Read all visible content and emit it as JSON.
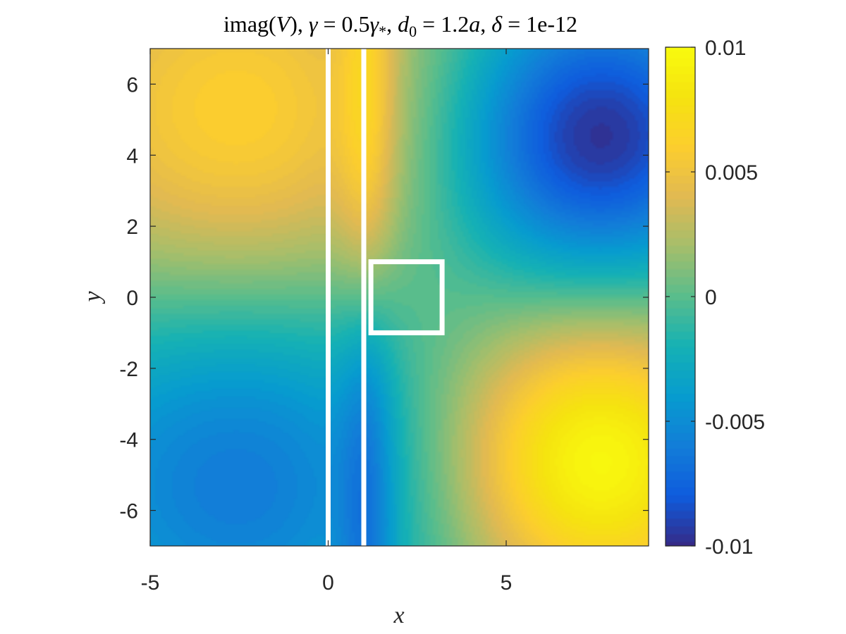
{
  "chart_data": {
    "type": "heatmap",
    "title": "imag(V), γ = 0.5γ*, d0 = 1.2a, δ = 1e-12",
    "title_parts": {
      "func": "imag(",
      "var": "V",
      "close": "),",
      "gamma": "γ",
      "eq1": " = 0.5",
      "gamma_star": "γ",
      "star": "*",
      "sep1": ",",
      "d": "d",
      "d_sub": "0",
      "eq2": " = 1.2",
      "a": "a",
      "sep2": ",",
      "delta": "δ",
      "eq3": " = 1e-12"
    },
    "xlabel": "x",
    "ylabel": "y",
    "xlim": [
      -5,
      9
    ],
    "ylim": [
      -7,
      7
    ],
    "xticks": [
      -5,
      0,
      5
    ],
    "xtick_labels": [
      "-5",
      "0",
      "5"
    ],
    "yticks": [
      6,
      4,
      2,
      0,
      -2,
      -4,
      -6
    ],
    "ytick_labels": [
      "6",
      "4",
      "2",
      "0",
      "-2",
      "-4",
      "-6"
    ],
    "colorbar": {
      "range": [
        -0.01,
        0.01
      ],
      "ticks": [
        0.01,
        0.005,
        0,
        -0.005,
        -0.01
      ],
      "tick_labels": [
        "0.01",
        "0.005",
        "0",
        "-0.005",
        "-0.01"
      ],
      "colormap": "parula"
    },
    "field_extrema": [
      {
        "x": -2.5,
        "y": 4.7,
        "value": 0.0065
      },
      {
        "x": -2.5,
        "y": -4.7,
        "value": -0.0065
      },
      {
        "x": 7.5,
        "y": 4.5,
        "value": -0.01
      },
      {
        "x": 7.5,
        "y": -4.6,
        "value": 0.01
      }
    ],
    "overlays": {
      "vertical_lines_x": [
        0,
        1
      ],
      "rectangle": {
        "x": [
          1.2,
          3.2
        ],
        "y": [
          -1,
          1
        ]
      },
      "color": "#ffffff"
    },
    "grid": false
  }
}
